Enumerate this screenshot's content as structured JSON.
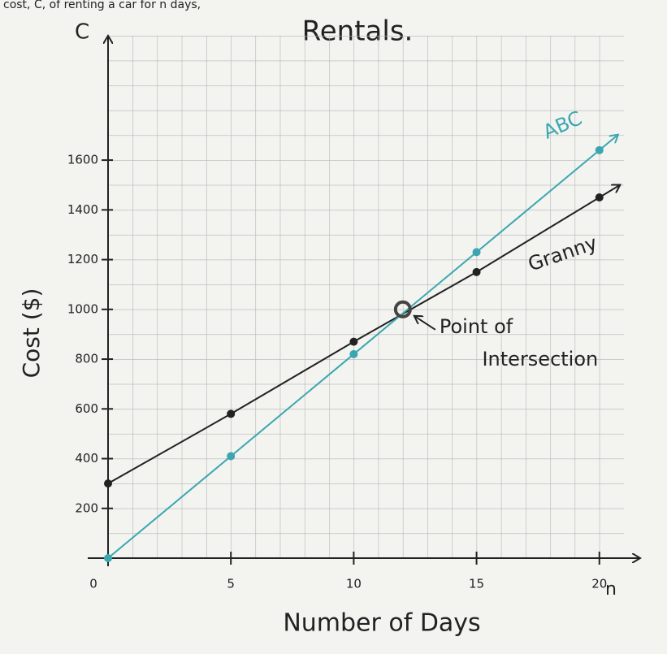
{
  "header_text": "cost, C, of renting a car for n days,",
  "chart_data": {
    "type": "line",
    "title": "Rentals.",
    "x_label": "Number of Days",
    "y_label": "Cost ($)",
    "x_axis_letter": "n",
    "y_axis_letter": "C",
    "x": [
      0,
      5,
      10,
      15,
      20
    ],
    "series": [
      {
        "name": "Granny",
        "color": "#222222",
        "values": [
          300,
          580,
          870,
          1150,
          1450
        ]
      },
      {
        "name": "ABC",
        "color": "#3aa7b0",
        "values": [
          0,
          410,
          820,
          1230,
          1640
        ]
      }
    ],
    "xlim": [
      0,
      21
    ],
    "ylim": [
      0,
      2100
    ],
    "xticks": [
      0,
      5,
      10,
      15,
      20
    ],
    "yticks": [
      200,
      400,
      600,
      800,
      1000,
      1200,
      1400,
      1600
    ],
    "grid": true,
    "annotation": {
      "text": "Point of Intersection",
      "x": 12,
      "y": 1000
    }
  }
}
